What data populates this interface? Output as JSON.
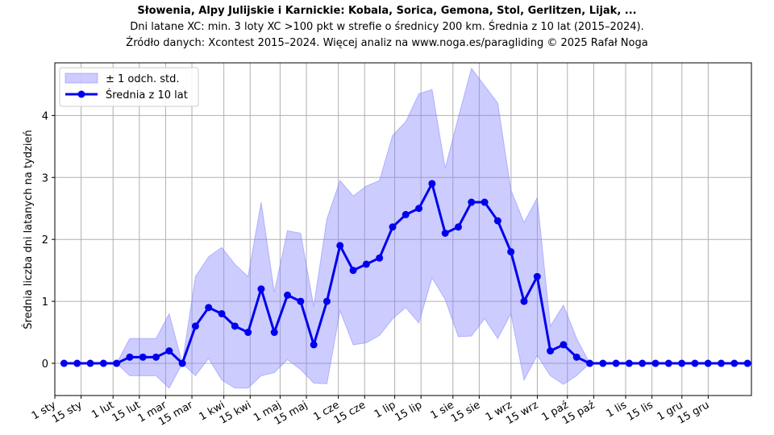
{
  "chart_data": {
    "type": "line",
    "title": "Słowenia, Alpy Julijskie i Karnickie: Kobala, Sorica, Gemona, Stol, Gerlitzen, Lijak, ...",
    "subtitle_lines": [
      "Dni latane XC: min. 3 loty XC >100 pkt w strefie o średnicy 200 km. Średnia z 10 lat (2015–2024).",
      "Źródło danych: Xcontest 2015–2024. Więcej analiz na www.noga.es/paragliding © 2025 Rafał Noga"
    ],
    "xlabel": "",
    "ylabel": "Średnia liczba dni latanych na tydzień",
    "xlim": [
      0,
      53
    ],
    "ylim": [
      -0.52,
      4.85
    ],
    "y_ticks": [
      0,
      1,
      2,
      3,
      4
    ],
    "x_ticks": [
      {
        "x": 0,
        "label": "1 sty"
      },
      {
        "x": 2,
        "label": "15 sty"
      },
      {
        "x": 4.43,
        "label": "1 lut"
      },
      {
        "x": 6.43,
        "label": "15 lut"
      },
      {
        "x": 8.43,
        "label": "1 mar"
      },
      {
        "x": 10.43,
        "label": "15 mar"
      },
      {
        "x": 12.86,
        "label": "1 kwi"
      },
      {
        "x": 14.86,
        "label": "15 kwi"
      },
      {
        "x": 17.14,
        "label": "1 maj"
      },
      {
        "x": 19.14,
        "label": "15 maj"
      },
      {
        "x": 21.57,
        "label": "1 cze"
      },
      {
        "x": 23.57,
        "label": "15 cze"
      },
      {
        "x": 25.86,
        "label": "1 lip"
      },
      {
        "x": 27.86,
        "label": "15 lip"
      },
      {
        "x": 30.29,
        "label": "1 sie"
      },
      {
        "x": 32.29,
        "label": "15 sie"
      },
      {
        "x": 34.71,
        "label": "1 wrz"
      },
      {
        "x": 36.71,
        "label": "15 wrz"
      },
      {
        "x": 39.0,
        "label": "1 paź"
      },
      {
        "x": 41.0,
        "label": "15 paź"
      },
      {
        "x": 43.43,
        "label": "1 lis"
      },
      {
        "x": 45.43,
        "label": "15 lis"
      },
      {
        "x": 47.71,
        "label": "1 gru"
      },
      {
        "x": 49.71,
        "label": "15 gru"
      }
    ],
    "grid": true,
    "legend_position": "top-left",
    "series": [
      {
        "name": "Średnia z 10 lat",
        "color": "#0000ee",
        "x": [
          0.7,
          1.7,
          2.7,
          3.7,
          4.7,
          5.7,
          6.7,
          7.7,
          8.7,
          9.7,
          10.7,
          11.7,
          12.7,
          13.7,
          14.7,
          15.7,
          16.7,
          17.7,
          18.7,
          19.7,
          20.7,
          21.7,
          22.7,
          23.7,
          24.7,
          25.7,
          26.7,
          27.7,
          28.7,
          29.7,
          30.7,
          31.7,
          32.7,
          33.7,
          34.7,
          35.7,
          36.7,
          37.7,
          38.7,
          39.7,
          40.7,
          41.7,
          42.7,
          43.7,
          44.7,
          45.7,
          46.7,
          47.7,
          48.7,
          49.7,
          50.7,
          51.7,
          52.7
        ],
        "values": [
          0,
          0,
          0,
          0,
          0,
          0.1,
          0.1,
          0.1,
          0.2,
          0,
          0.6,
          0.9,
          0.8,
          0.6,
          0.5,
          1.2,
          0.5,
          1.1,
          1.0,
          0.3,
          1.0,
          1.9,
          1.5,
          1.6,
          1.7,
          2.2,
          2.4,
          2.5,
          2.9,
          2.1,
          2.2,
          2.6,
          2.6,
          2.3,
          1.8,
          1.0,
          1.4,
          0.2,
          0.3,
          0.1,
          0,
          0,
          0,
          0,
          0,
          0,
          0,
          0,
          0,
          0,
          0,
          0,
          0
        ]
      }
    ],
    "band": {
      "name": "± 1 odch. std.",
      "color": "#8080ff",
      "upper": [
        0,
        0,
        0,
        0,
        0,
        0.4,
        0.4,
        0.4,
        0.8,
        0,
        1.4,
        1.72,
        1.87,
        1.6,
        1.4,
        2.6,
        1.15,
        2.14,
        2.1,
        0.92,
        2.33,
        2.95,
        2.7,
        2.86,
        2.95,
        3.68,
        3.9,
        4.35,
        4.42,
        3.15,
        3.97,
        4.76,
        4.48,
        4.2,
        2.8,
        2.27,
        2.67,
        0.6,
        0.94,
        0.4,
        0,
        0,
        0,
        0,
        0,
        0,
        0,
        0,
        0,
        0,
        0,
        0,
        0
      ],
      "lower": [
        0,
        0,
        0,
        0,
        0,
        -0.2,
        -0.2,
        -0.2,
        -0.4,
        0,
        -0.2,
        0.08,
        -0.27,
        -0.4,
        -0.4,
        -0.2,
        -0.15,
        0.06,
        -0.1,
        -0.32,
        -0.33,
        0.85,
        0.3,
        0.33,
        0.45,
        0.72,
        0.9,
        0.65,
        1.38,
        1.03,
        0.43,
        0.44,
        0.72,
        0.4,
        0.8,
        -0.27,
        0.13,
        -0.2,
        -0.34,
        -0.2,
        0,
        0,
        0,
        0,
        0,
        0,
        0,
        0,
        0,
        0,
        0,
        0,
        0
      ]
    }
  }
}
